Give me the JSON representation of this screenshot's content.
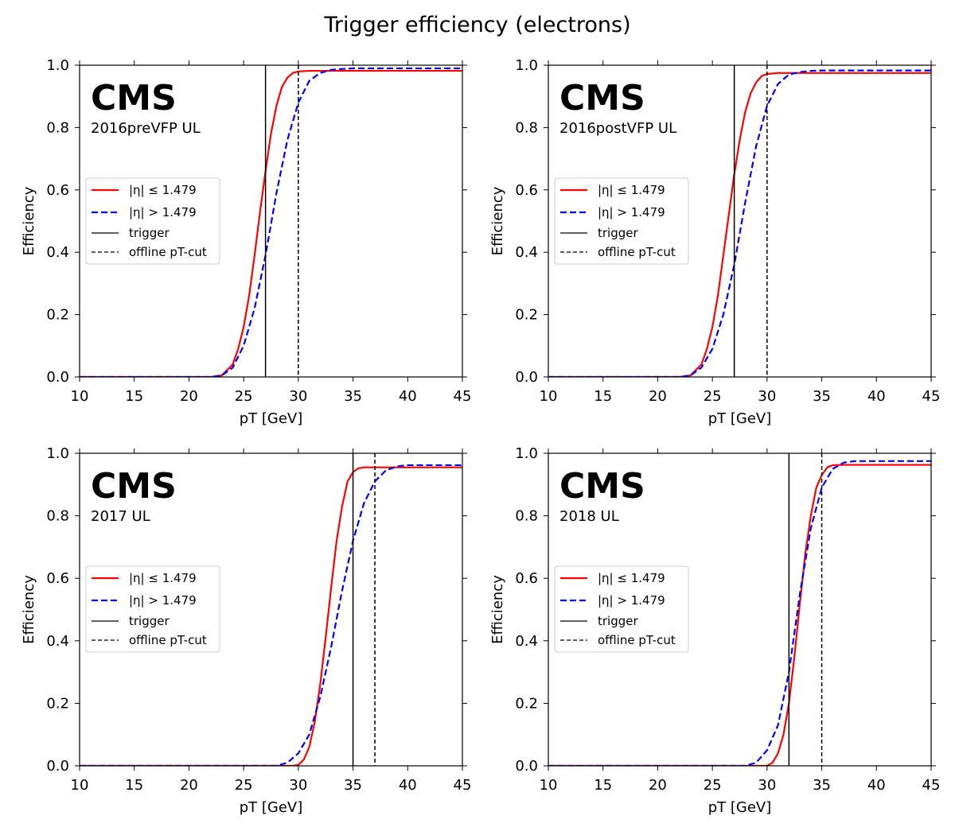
{
  "figure_title": "Trigger efficiency (electrons)",
  "colors": {
    "barrel": "#ff0000",
    "endcap": "#0000ff",
    "lines": "#000000"
  },
  "legend_labels": [
    "|η| ≤ 1.479",
    "|η| > 1.479",
    "trigger",
    "offline pT-cut"
  ],
  "chart_data": [
    {
      "type": "line",
      "experiment": "CMS",
      "era": "2016preVFP UL",
      "xlabel": "pT [GeV]",
      "ylabel": "Efficiency",
      "xlim": [
        10,
        45
      ],
      "ylim": [
        0,
        1
      ],
      "xticks": [
        10,
        15,
        20,
        25,
        30,
        35,
        40,
        45
      ],
      "yticks": [
        0.0,
        0.2,
        0.4,
        0.6,
        0.8,
        1.0
      ],
      "legend_position": "center-left",
      "trigger_threshold": 27,
      "offline_pt_cut": 30,
      "series": [
        {
          "name": "|η| ≤ 1.479",
          "style": "solid",
          "color": "red",
          "x": [
            10,
            22,
            23,
            24,
            24.5,
            25,
            25.5,
            26,
            26.5,
            27,
            27.5,
            28,
            28.5,
            29,
            29.5,
            30,
            31,
            32,
            35,
            40,
            45
          ],
          "y": [
            0.0,
            0.0,
            0.005,
            0.04,
            0.09,
            0.16,
            0.26,
            0.39,
            0.53,
            0.66,
            0.78,
            0.87,
            0.93,
            0.96,
            0.975,
            0.98,
            0.982,
            0.982,
            0.982,
            0.982,
            0.982
          ]
        },
        {
          "name": "|η| > 1.479",
          "style": "dashed",
          "color": "blue",
          "x": [
            10,
            22,
            23,
            24,
            25,
            26,
            27,
            28,
            29,
            30,
            31,
            32,
            33,
            34,
            35,
            40,
            45
          ],
          "y": [
            0.0,
            0.0,
            0.005,
            0.03,
            0.1,
            0.22,
            0.39,
            0.59,
            0.76,
            0.88,
            0.95,
            0.975,
            0.985,
            0.988,
            0.99,
            0.99,
            0.99
          ]
        }
      ]
    },
    {
      "type": "line",
      "experiment": "CMS",
      "era": "2016postVFP UL",
      "xlabel": "pT [GeV]",
      "ylabel": "Efficiency",
      "xlim": [
        10,
        45
      ],
      "ylim": [
        0,
        1
      ],
      "xticks": [
        10,
        15,
        20,
        25,
        30,
        35,
        40,
        45
      ],
      "yticks": [
        0.0,
        0.2,
        0.4,
        0.6,
        0.8,
        1.0
      ],
      "legend_position": "center-left",
      "trigger_threshold": 27,
      "offline_pt_cut": 30,
      "series": [
        {
          "name": "|η| ≤ 1.479",
          "style": "solid",
          "color": "red",
          "x": [
            10,
            22,
            23,
            24,
            24.5,
            25,
            25.5,
            26,
            26.5,
            27,
            27.5,
            28,
            28.5,
            29,
            29.5,
            30,
            31,
            32,
            35,
            40,
            45
          ],
          "y": [
            0.0,
            0.0,
            0.005,
            0.04,
            0.09,
            0.16,
            0.26,
            0.39,
            0.52,
            0.65,
            0.76,
            0.85,
            0.91,
            0.945,
            0.965,
            0.972,
            0.975,
            0.975,
            0.975,
            0.975,
            0.975
          ]
        },
        {
          "name": "|η| > 1.479",
          "style": "dashed",
          "color": "blue",
          "x": [
            10,
            22,
            23,
            24,
            25,
            26,
            27,
            28,
            29,
            30,
            31,
            32,
            33,
            34,
            35,
            40,
            45
          ],
          "y": [
            0.0,
            0.0,
            0.005,
            0.03,
            0.09,
            0.2,
            0.36,
            0.56,
            0.74,
            0.87,
            0.94,
            0.97,
            0.978,
            0.982,
            0.983,
            0.983,
            0.983
          ]
        }
      ]
    },
    {
      "type": "line",
      "experiment": "CMS",
      "era": "2017 UL",
      "xlabel": "pT [GeV]",
      "ylabel": "Efficiency",
      "xlim": [
        10,
        45
      ],
      "ylim": [
        0,
        1
      ],
      "xticks": [
        10,
        15,
        20,
        25,
        30,
        35,
        40,
        45
      ],
      "yticks": [
        0.0,
        0.2,
        0.4,
        0.6,
        0.8,
        1.0
      ],
      "legend_position": "center-left",
      "trigger_threshold": 35,
      "offline_pt_cut": 37,
      "series": [
        {
          "name": "|η| ≤ 1.479",
          "style": "solid",
          "color": "red",
          "x": [
            10,
            29.5,
            30,
            30.5,
            31,
            31.5,
            32,
            32.5,
            33,
            33.5,
            34,
            34.5,
            35,
            35.5,
            36,
            37,
            40,
            45
          ],
          "y": [
            0.0,
            0.0,
            0.003,
            0.02,
            0.06,
            0.14,
            0.26,
            0.41,
            0.57,
            0.72,
            0.83,
            0.91,
            0.94,
            0.952,
            0.955,
            0.955,
            0.955,
            0.955
          ]
        },
        {
          "name": "|η| > 1.479",
          "style": "dashed",
          "color": "blue",
          "x": [
            10,
            28,
            29,
            30,
            31,
            32,
            33,
            34,
            35,
            36,
            37,
            38,
            39,
            40,
            41,
            45
          ],
          "y": [
            0.0,
            0.0,
            0.01,
            0.04,
            0.1,
            0.22,
            0.38,
            0.56,
            0.72,
            0.84,
            0.91,
            0.945,
            0.958,
            0.962,
            0.962,
            0.962
          ]
        }
      ]
    },
    {
      "type": "line",
      "experiment": "CMS",
      "era": "2018 UL",
      "xlabel": "pT [GeV]",
      "ylabel": "Efficiency",
      "xlim": [
        10,
        45
      ],
      "ylim": [
        0,
        1
      ],
      "xticks": [
        10,
        15,
        20,
        25,
        30,
        35,
        40,
        45
      ],
      "yticks": [
        0.0,
        0.2,
        0.4,
        0.6,
        0.8,
        1.0
      ],
      "legend_position": "center-left",
      "trigger_threshold": 32,
      "offline_pt_cut": 35,
      "series": [
        {
          "name": "|η| ≤ 1.479",
          "style": "solid",
          "color": "red",
          "x": [
            10,
            30,
            30.5,
            31,
            31.5,
            32,
            32.5,
            33,
            33.5,
            34,
            34.5,
            35,
            35.5,
            36,
            37,
            40,
            45
          ],
          "y": [
            0.0,
            0.0,
            0.01,
            0.04,
            0.1,
            0.2,
            0.35,
            0.52,
            0.68,
            0.8,
            0.89,
            0.93,
            0.955,
            0.962,
            0.963,
            0.963,
            0.963
          ]
        },
        {
          "name": "|η| > 1.479",
          "style": "dashed",
          "color": "blue",
          "x": [
            10,
            28,
            29,
            30,
            31,
            32,
            33,
            34,
            35,
            36,
            37,
            38,
            40,
            45
          ],
          "y": [
            0.0,
            0.0,
            0.01,
            0.05,
            0.13,
            0.3,
            0.55,
            0.76,
            0.89,
            0.95,
            0.97,
            0.975,
            0.975,
            0.975
          ]
        }
      ]
    }
  ]
}
